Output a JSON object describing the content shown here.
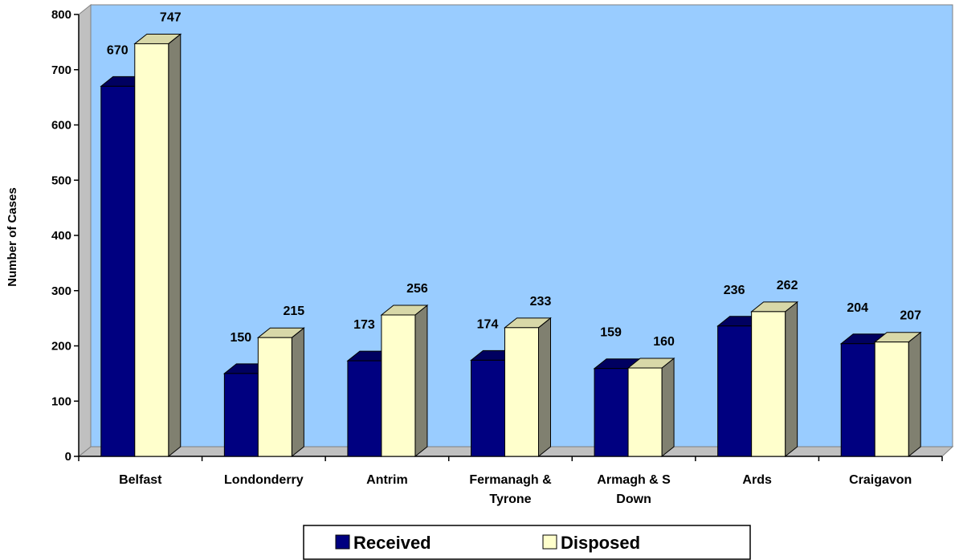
{
  "colors": {
    "wall": "#99CCFF",
    "received": "#000080",
    "disposed": "#FFFFCC",
    "side": "#808070"
  },
  "chart_data": {
    "type": "bar",
    "categories": [
      [
        "Belfast"
      ],
      [
        "Londonderry"
      ],
      [
        "Antrim"
      ],
      [
        "Fermanagh &",
        "Tyrone"
      ],
      [
        "Armagh & S",
        "Down"
      ],
      [
        "Ards"
      ],
      [
        "Craigavon"
      ]
    ],
    "series": [
      {
        "name": "Received",
        "values": [
          670,
          150,
          173,
          174,
          159,
          236,
          204
        ]
      },
      {
        "name": "Disposed",
        "values": [
          747,
          215,
          256,
          233,
          160,
          262,
          207
        ]
      }
    ],
    "ylabel": "Number of Cases",
    "ylim": [
      0,
      800
    ],
    "yticks": [
      0,
      100,
      200,
      300,
      400,
      500,
      600,
      700,
      800
    ],
    "legend_position": "bottom",
    "grid": false
  }
}
